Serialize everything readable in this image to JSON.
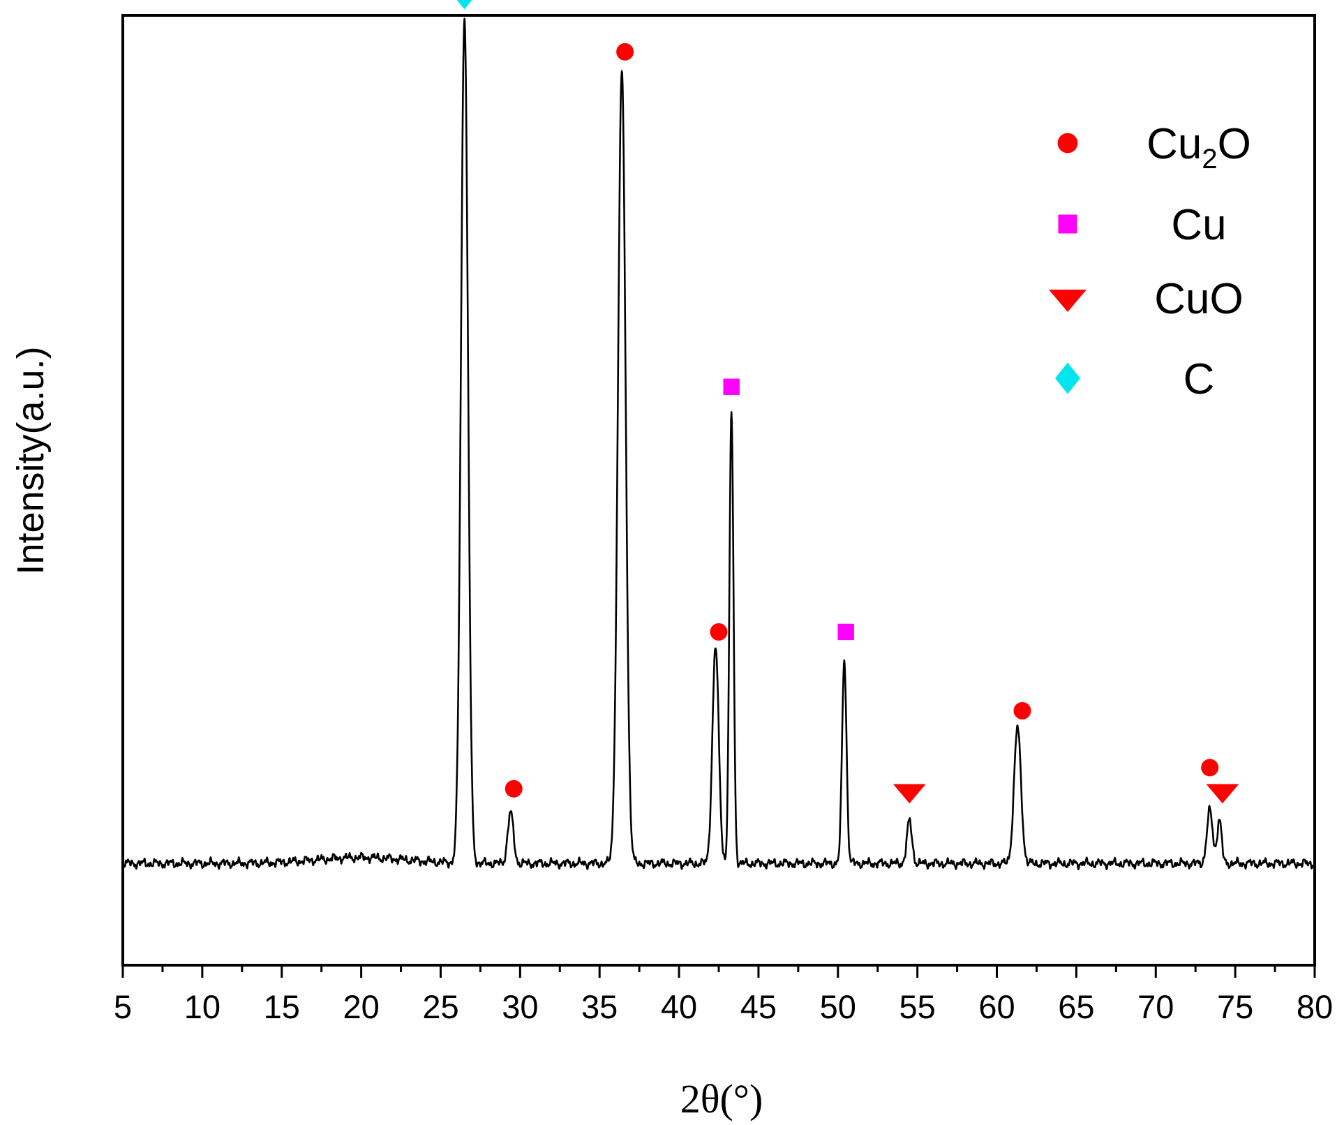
{
  "chart_data": {
    "type": "line",
    "title": "",
    "xlabel": "2θ(°)",
    "ylabel": "Intensity(a.u.)",
    "xlim": [
      5,
      80
    ],
    "ylim": [
      -12,
      100
    ],
    "x_ticks": [
      "5",
      "10",
      "15",
      "20",
      "25",
      "30",
      "35",
      "40",
      "45",
      "50",
      "55",
      "60",
      "65",
      "70",
      "75",
      "80"
    ],
    "y_ticks": [],
    "grid": false,
    "legend_position": "top-right",
    "colors": {
      "line": "#000000",
      "Cu2O": "#ff0000",
      "Cu": "#ff00ff",
      "CuO": "#ff0000",
      "C": "#00e5ee"
    },
    "legend": [
      {
        "key": "Cu2O",
        "label_main": "Cu",
        "label_sub": "2",
        "label_tail": "O",
        "marker": "circle"
      },
      {
        "key": "Cu",
        "label_main": "Cu",
        "label_sub": "",
        "label_tail": "",
        "marker": "square"
      },
      {
        "key": "CuO",
        "label_main": "CuO",
        "label_sub": "",
        "label_tail": "",
        "marker": "triangle-down"
      },
      {
        "key": "C",
        "label_main": "C",
        "label_sub": "",
        "label_tail": "",
        "marker": "diamond"
      }
    ],
    "baseline": 0,
    "peaks": [
      {
        "x": 26.5,
        "height": 100,
        "width": 0.22,
        "phase": "C"
      },
      {
        "x": 29.4,
        "height": 6,
        "width": 0.18,
        "phase": "Cu2O"
      },
      {
        "x": 36.4,
        "height": 93.5,
        "width": 0.24,
        "phase": "Cu2O"
      },
      {
        "x": 42.3,
        "height": 25.5,
        "width": 0.2,
        "phase": "Cu2O"
      },
      {
        "x": 43.3,
        "height": 53,
        "width": 0.13,
        "phase": "Cu"
      },
      {
        "x": 50.4,
        "height": 24,
        "width": 0.14,
        "phase": "Cu"
      },
      {
        "x": 54.5,
        "height": 5,
        "width": 0.16,
        "phase": "CuO"
      },
      {
        "x": 61.3,
        "height": 16,
        "width": 0.22,
        "phase": "Cu2O"
      },
      {
        "x": 73.4,
        "height": 6.2,
        "width": 0.18,
        "phase": "Cu2O"
      },
      {
        "x": 74.0,
        "height": 5.2,
        "width": 0.14,
        "phase": "CuO"
      }
    ],
    "markers": [
      {
        "x": 26.5,
        "y": 102.3,
        "phase": "C"
      },
      {
        "x": 29.6,
        "y": 8.8,
        "phase": "Cu2O"
      },
      {
        "x": 36.6,
        "y": 95.7,
        "phase": "Cu2O"
      },
      {
        "x": 42.5,
        "y": 27.3,
        "phase": "Cu2O"
      },
      {
        "x": 43.3,
        "y": 56.2,
        "phase": "Cu"
      },
      {
        "x": 50.5,
        "y": 27.3,
        "phase": "Cu"
      },
      {
        "x": 54.5,
        "y": 8.5,
        "phase": "CuO"
      },
      {
        "x": 61.6,
        "y": 18,
        "phase": "Cu2O"
      },
      {
        "x": 73.4,
        "y": 11.3,
        "phase": "Cu2O"
      },
      {
        "x": 74.2,
        "y": 8.5,
        "phase": "CuO"
      }
    ]
  }
}
